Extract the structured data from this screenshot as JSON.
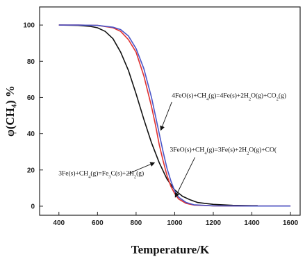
{
  "chart_data": {
    "type": "line",
    "title": "",
    "xlabel": "Temperature/K",
    "ylabel": "φ(CH₄) %",
    "xlim": [
      300,
      1650
    ],
    "ylim": [
      -5,
      110
    ],
    "xticks": [
      400,
      600,
      800,
      1000,
      1200,
      1400,
      1600
    ],
    "yticks": [
      0,
      20,
      40,
      60,
      80,
      100
    ],
    "grid": false,
    "legend": "none",
    "series": [
      {
        "color": "#111111",
        "x": [
          400,
          500,
          560,
          600,
          640,
          680,
          720,
          760,
          800,
          840,
          880,
          920,
          960,
          1000,
          1040,
          1080,
          1120,
          1200,
          1300,
          1400,
          1430
        ],
        "y": [
          100,
          99.8,
          99.3,
          98.5,
          96.5,
          92.5,
          85,
          75,
          62,
          48,
          35,
          24,
          15,
          9,
          5.5,
          3.5,
          2,
          1,
          0.5,
          0.3,
          0.3
        ]
      },
      {
        "color": "#e03030",
        "x": [
          400,
          500,
          600,
          680,
          720,
          760,
          800,
          840,
          880,
          900,
          920,
          940,
          960,
          980,
          1000,
          1020,
          1060,
          1100,
          1200,
          1400,
          1600
        ],
        "y": [
          100,
          100,
          99.8,
          98.5,
          96.5,
          92,
          85,
          72,
          55,
          45,
          34,
          25,
          17,
          11,
          7,
          4,
          1.5,
          0.6,
          0.2,
          0.1,
          0.1
        ]
      },
      {
        "color": "#4a55c8",
        "x": [
          400,
          500,
          600,
          680,
          720,
          760,
          800,
          840,
          880,
          900,
          920,
          940,
          960,
          980,
          1000,
          1020,
          1060,
          1100,
          1200,
          1400,
          1600
        ],
        "y": [
          100,
          100,
          99.8,
          98.8,
          97.5,
          94,
          87,
          76,
          60,
          50,
          40,
          30,
          21,
          14,
          8.5,
          5,
          2,
          0.8,
          0.2,
          0.1,
          0.1
        ]
      }
    ],
    "annotations": [
      {
        "parts": [
          [
            "4FeO(s)+CH",
            ""
          ],
          [
            "4",
            "sub"
          ],
          [
            "(g)=4Fe(s)+2H",
            ""
          ],
          [
            "2",
            "sub"
          ],
          [
            "O(g)+CO",
            ""
          ],
          [
            "2",
            "sub"
          ],
          [
            "(g)",
            ""
          ]
        ],
        "text_x": 985,
        "text_y": 60,
        "arrow_from": [
          985,
          57.5
        ],
        "arrow_to": [
          928,
          42
        ]
      },
      {
        "parts": [
          [
            "3FeO(s)+CH",
            ""
          ],
          [
            "4",
            "sub"
          ],
          [
            "(g)=3Fe(s)+2H",
            ""
          ],
          [
            "2",
            "sub"
          ],
          [
            "O(g)+CO(",
            ""
          ]
        ],
        "text_x": 975,
        "text_y": 30,
        "arrow_from": [
          1105,
          27
        ],
        "arrow_to": [
          1003,
          5
        ]
      },
      {
        "parts": [
          [
            "3Fe(s)+CH",
            ""
          ],
          [
            "4",
            "sub"
          ],
          [
            "(g)=Fe",
            ""
          ],
          [
            "3",
            "sub"
          ],
          [
            "C(s)+2H",
            ""
          ],
          [
            "2",
            "sub"
          ],
          [
            "(g)",
            ""
          ]
        ],
        "text_x": 398,
        "text_y": 17,
        "arrow_from": [
          760,
          18
        ],
        "arrow_to": [
          895,
          24
        ]
      }
    ]
  }
}
